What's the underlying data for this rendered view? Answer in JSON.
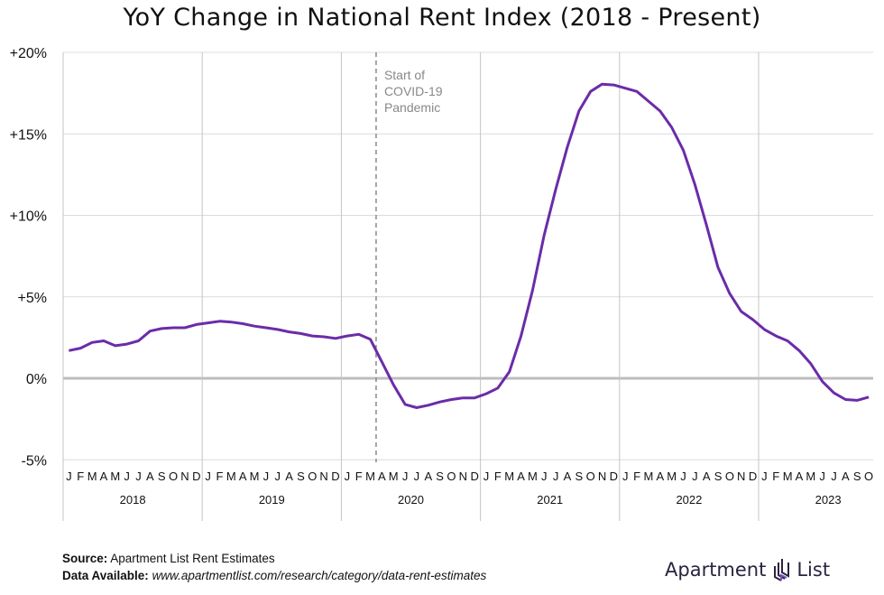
{
  "chart_data": {
    "type": "line",
    "title": "YoY Change in National Rent Index (2018 - Present)",
    "xlabel": "",
    "ylabel": "",
    "ylim": [
      -5,
      20
    ],
    "yticks": [
      "+20%",
      "+15%",
      "+10%",
      "+5%",
      "0%",
      "-5%"
    ],
    "ytick_values": [
      20,
      15,
      10,
      5,
      0,
      -5
    ],
    "month_labels": [
      "J",
      "F",
      "M",
      "A",
      "M",
      "J",
      "J",
      "A",
      "S",
      "O",
      "N",
      "D"
    ],
    "years": [
      "2018",
      "2019",
      "2020",
      "2021",
      "2022",
      "2023"
    ],
    "last_year_months": 10,
    "grid": true,
    "line_color": "#6b2ca8",
    "annotation": {
      "lines": [
        "Start of",
        "COVID-19",
        "Pandemic"
      ],
      "at_month": "2020-04",
      "color": "#888888"
    },
    "series": [
      {
        "x_start": "2018-01",
        "x_end": "2023-10",
        "values": [
          1.7,
          1.85,
          2.2,
          2.3,
          2.0,
          2.1,
          2.3,
          2.9,
          3.05,
          3.1,
          3.1,
          3.3,
          3.4,
          3.5,
          3.45,
          3.35,
          3.2,
          3.1,
          3.0,
          2.85,
          2.75,
          2.6,
          2.55,
          2.45,
          2.6,
          2.7,
          2.4,
          1.0,
          -0.4,
          -1.6,
          -1.8,
          -1.65,
          -1.45,
          -1.3,
          -1.2,
          -1.2,
          -0.95,
          -0.6,
          0.4,
          2.6,
          5.4,
          8.8,
          11.6,
          14.2,
          16.4,
          17.6,
          18.05,
          18.0,
          17.8,
          17.6,
          17.0,
          16.4,
          15.4,
          14.0,
          11.9,
          9.4,
          6.8,
          5.2,
          4.1,
          3.6,
          3.0,
          2.6,
          2.3,
          1.7,
          0.9,
          -0.2,
          -0.9,
          -1.3,
          -1.35,
          -1.15
        ]
      }
    ]
  },
  "footer": {
    "source_label": "Source:",
    "source_value": "Apartment List Rent Estimates",
    "data_label": "Data Available:",
    "data_value": "www.apartmentlist.com/research/category/data-rent-estimates"
  },
  "logo": {
    "left": "Apartment",
    "right": "List"
  }
}
